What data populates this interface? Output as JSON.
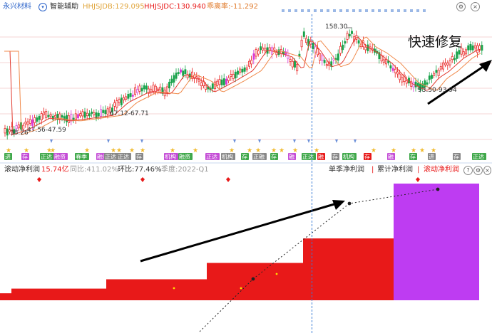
{
  "toolbar": {
    "stock_name": "永兴材料",
    "assist_label": "智能辅助",
    "hhjsjdb": "HHJSJDB:129.095",
    "hhjsjdc": "HHJSJDC:130.940",
    "ratio": "乖离率:-11.292"
  },
  "price_chart": {
    "high_label": "158.30",
    "low_label": "93.50-93.94",
    "level_labels": [
      "38.26",
      "47.56-47.59",
      "67.12-67.71"
    ],
    "annotation": "快速修复",
    "colors": {
      "up": "#e81919",
      "down": "#19a24a",
      "limit_up": "#d93bd9",
      "ma1": "#e23b2f",
      "ma2": "#f08a4b"
    }
  },
  "signal_rows": {
    "event_tags": [
      "进",
      "存",
      "正达",
      "融资",
      "春季",
      "融资",
      "正达",
      "正达",
      "存",
      "机构",
      "融资",
      "正达",
      "机构",
      "存",
      "正融",
      "存",
      "融",
      "正达",
      "融",
      "存",
      "机构",
      "存",
      "融",
      "存"
    ]
  },
  "indicator_pane": {
    "title": "滚动净利润",
    "value": "15.74亿",
    "yoy": "同比:411.02%",
    "qoq": "环比:77.46%",
    "quarter": "季度:2022-Q1",
    "tabs": [
      "单季净利润",
      "累计净利润",
      "滚动净利润"
    ],
    "active_tab": "滚动净利润",
    "bar_colors": {
      "past": "#e81919",
      "latest": "#be3cf2"
    },
    "levels_relative": [
      0.06,
      0.1,
      0.18,
      0.32,
      0.53,
      1.0
    ]
  }
}
